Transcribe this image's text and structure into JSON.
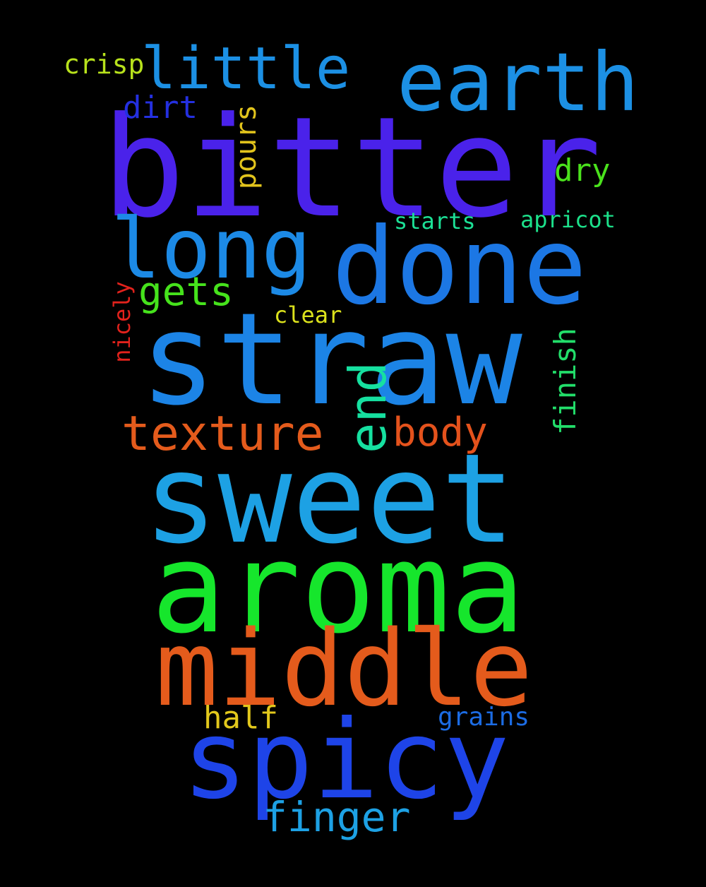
{
  "word_cloud": {
    "background": "#000000",
    "words": [
      {
        "id": "bitter",
        "text": "bitter",
        "color": "#4A22EA"
      },
      {
        "id": "straw",
        "text": "straw",
        "color": "#1C84E6"
      },
      {
        "id": "sweet",
        "text": "sweet",
        "color": "#1DA1E4"
      },
      {
        "id": "aroma",
        "text": "aroma",
        "color": "#16E62C"
      },
      {
        "id": "middle",
        "text": "middle",
        "color": "#E45B1C"
      },
      {
        "id": "done",
        "text": "done",
        "color": "#1C77E4"
      },
      {
        "id": "spicy",
        "text": "spicy",
        "color": "#1E44E8"
      },
      {
        "id": "earth",
        "text": "earth",
        "color": "#1C90E4"
      },
      {
        "id": "long",
        "text": "long",
        "color": "#1C8AE6"
      },
      {
        "id": "little",
        "text": "little",
        "color": "#1C90E4"
      },
      {
        "id": "texture",
        "text": "texture",
        "color": "#E45B1C"
      },
      {
        "id": "end",
        "text": "end",
        "color": "#16E0A0"
      },
      {
        "id": "body",
        "text": "body",
        "color": "#E4521C"
      },
      {
        "id": "finger",
        "text": "finger",
        "color": "#1DA1E4"
      },
      {
        "id": "gets",
        "text": "gets",
        "color": "#46E21C"
      },
      {
        "id": "finish",
        "text": "finish",
        "color": "#22DE6A"
      },
      {
        "id": "pours",
        "text": "pours",
        "color": "#E2C41C"
      },
      {
        "id": "dirt",
        "text": "dirt",
        "color": "#2430E0"
      },
      {
        "id": "dry",
        "text": "dry",
        "color": "#4AE21C"
      },
      {
        "id": "half",
        "text": "half",
        "color": "#E2C81C"
      },
      {
        "id": "crisp",
        "text": "crisp",
        "color": "#B8E21C"
      },
      {
        "id": "grains",
        "text": "grains",
        "color": "#1C6CE4"
      },
      {
        "id": "apricot",
        "text": "apricot",
        "color": "#1CE08A"
      },
      {
        "id": "starts",
        "text": "starts",
        "color": "#1CE096"
      },
      {
        "id": "clear",
        "text": "clear",
        "color": "#DCE21C"
      },
      {
        "id": "nicely",
        "text": "nicely",
        "color": "#E2221C"
      }
    ]
  }
}
